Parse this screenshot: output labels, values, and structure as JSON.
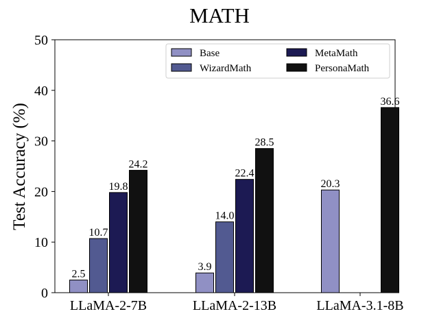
{
  "chart_data": {
    "type": "bar",
    "title": "MATH",
    "xlabel": "",
    "ylabel": "Test Accuracy (%)",
    "ylim": [
      0,
      50
    ],
    "yticks": [
      "0",
      "10",
      "20",
      "30",
      "40",
      "50"
    ],
    "categories": [
      "LLaMA-2-7B",
      "LLaMA-2-13B",
      "LLaMA-3.1-8B"
    ],
    "grid": false,
    "legend_position": "top-right",
    "series": [
      {
        "name": "Base",
        "color": "#9090c4",
        "values": [
          2.5,
          3.9,
          20.3
        ],
        "labels": [
          "2.5",
          "3.9",
          "20.3"
        ]
      },
      {
        "name": "WizardMath",
        "color": "#525a91",
        "values": [
          10.7,
          14.0,
          null
        ],
        "labels": [
          "10.7",
          "14.0",
          ""
        ]
      },
      {
        "name": "MetaMath",
        "color": "#1c1a53",
        "values": [
          19.8,
          22.4,
          null
        ],
        "labels": [
          "19.8",
          "22.4",
          ""
        ]
      },
      {
        "name": "PersonaMath",
        "color": "#111111",
        "values": [
          24.2,
          28.5,
          36.6
        ],
        "labels": [
          "24.2",
          "28.5",
          "36.6"
        ]
      }
    ]
  }
}
